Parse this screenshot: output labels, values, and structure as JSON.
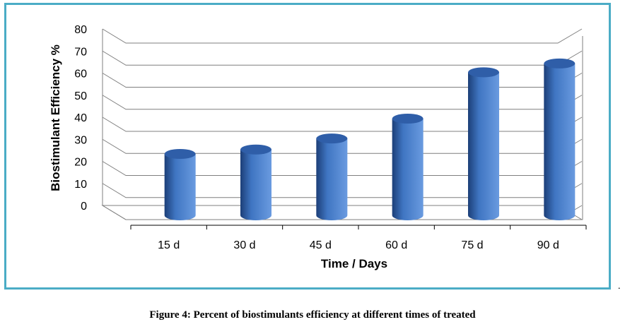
{
  "figure": {
    "caption": "Figure 4: Percent of biostimulants efficiency at different times of treated",
    "trailing_mark": "."
  },
  "chart_data": {
    "type": "bar",
    "style": "3d-cylinder",
    "categories": [
      "15 d",
      "30 d",
      "45 d",
      "60 d",
      "75 d",
      "90 d"
    ],
    "values": [
      24,
      26,
      31,
      40,
      61,
      65
    ],
    "title": "",
    "xlabel": "Time / Days",
    "ylabel": "Biostimulant Efficiency %",
    "ylim": [
      0,
      80
    ],
    "yticks": [
      0,
      10,
      20,
      30,
      40,
      50,
      60,
      70,
      80
    ],
    "grid": true,
    "legend": "none",
    "colors": {
      "bar_light": "#6a9be0",
      "bar_mid": "#3f75c2",
      "bar_dark": "#1c3f78",
      "bar_top": "#2f5ea8",
      "border": "#4bacc6",
      "grid": "#7f7f7f"
    }
  }
}
